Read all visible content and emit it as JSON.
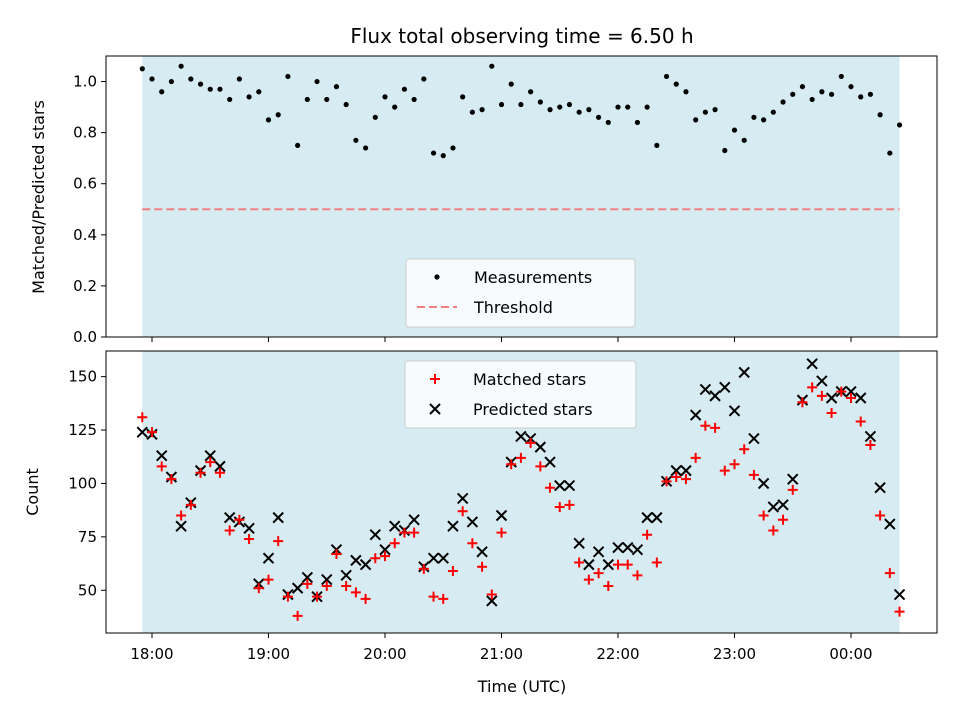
{
  "chart_data": {
    "title": "Flux total observing time = 6.50 h",
    "xlabel": "Time (UTC)",
    "x_ticks": [
      "18:00",
      "19:00",
      "20:00",
      "21:00",
      "22:00",
      "23:00",
      "00:00"
    ],
    "shaded_span": [
      "17:55",
      "00:25"
    ],
    "colors": {
      "span": "#add8e6",
      "measurements": "#000000",
      "threshold": "#f08080",
      "matched": "#ff0000",
      "predicted": "#000000"
    },
    "panels": [
      {
        "type": "scatter",
        "ylabel": "Matched/Predicted stars",
        "ylim": [
          0,
          1.1
        ],
        "yticks": [
          "0.0",
          "0.2",
          "0.4",
          "0.6",
          "0.8",
          "1.0"
        ],
        "legend": [
          "Measurements",
          "Threshold"
        ],
        "legend_position": "lower-center",
        "threshold": 0.5,
        "measurements": {
          "x": [
            "17:55",
            "18:00",
            "18:05",
            "18:10",
            "18:15",
            "18:20",
            "18:25",
            "18:30",
            "18:35",
            "18:40",
            "18:45",
            "18:50",
            "18:55",
            "19:00",
            "19:05",
            "19:10",
            "19:15",
            "19:20",
            "19:25",
            "19:30",
            "19:35",
            "19:40",
            "19:45",
            "19:50",
            "19:55",
            "20:00",
            "20:05",
            "20:10",
            "20:15",
            "20:20",
            "20:25",
            "20:30",
            "20:35",
            "20:40",
            "20:45",
            "20:50",
            "20:55",
            "21:00",
            "21:05",
            "21:10",
            "21:15",
            "21:20",
            "21:25",
            "21:30",
            "21:35",
            "21:40",
            "21:45",
            "21:50",
            "21:55",
            "22:00",
            "22:05",
            "22:10",
            "22:15",
            "22:20",
            "22:25",
            "22:30",
            "22:35",
            "22:40",
            "22:45",
            "22:50",
            "22:55",
            "23:00",
            "23:05",
            "23:10",
            "23:15",
            "23:20",
            "23:25",
            "23:30",
            "23:35",
            "23:40",
            "23:45",
            "23:50",
            "23:55",
            "00:00",
            "00:05",
            "00:10",
            "00:15",
            "00:20",
            "00:25"
          ],
          "y": [
            1.05,
            1.01,
            0.96,
            1.0,
            1.06,
            1.01,
            0.99,
            0.97,
            0.97,
            0.93,
            1.01,
            0.94,
            0.96,
            0.85,
            0.87,
            1.02,
            0.75,
            0.93,
            1.0,
            0.93,
            0.98,
            0.91,
            0.77,
            0.74,
            0.86,
            0.94,
            0.9,
            0.97,
            0.93,
            1.01,
            0.72,
            0.71,
            0.74,
            0.94,
            0.88,
            0.89,
            1.06,
            0.91,
            0.99,
            0.91,
            0.96,
            0.92,
            0.89,
            0.9,
            0.91,
            0.88,
            0.89,
            0.86,
            0.84,
            0.9,
            0.9,
            0.84,
            0.9,
            0.75,
            1.02,
            0.99,
            0.96,
            0.85,
            0.88,
            0.89,
            0.73,
            0.81,
            0.77,
            0.86,
            0.85,
            0.88,
            0.92,
            0.95,
            0.98,
            0.93,
            0.96,
            0.95,
            1.02,
            0.98,
            0.94,
            0.95,
            0.87,
            0.72,
            0.83
          ]
        }
      },
      {
        "type": "scatter",
        "ylabel": "Count",
        "ylim": [
          30,
          162
        ],
        "yticks": [
          "50",
          "75",
          "100",
          "125",
          "150"
        ],
        "legend": [
          "Matched stars",
          "Predicted stars"
        ],
        "legend_position": "upper-center",
        "series": [
          {
            "name": "Matched stars",
            "marker": "+",
            "x": [
              "17:55",
              "18:00",
              "18:05",
              "18:10",
              "18:15",
              "18:20",
              "18:25",
              "18:30",
              "18:35",
              "18:40",
              "18:45",
              "18:50",
              "18:55",
              "19:00",
              "19:05",
              "19:10",
              "19:15",
              "19:20",
              "19:25",
              "19:30",
              "19:35",
              "19:40",
              "19:45",
              "19:50",
              "19:55",
              "20:00",
              "20:05",
              "20:10",
              "20:15",
              "20:20",
              "20:25",
              "20:30",
              "20:35",
              "20:40",
              "20:45",
              "20:50",
              "20:55",
              "21:00",
              "21:05",
              "21:10",
              "21:15",
              "21:20",
              "21:25",
              "21:30",
              "21:35",
              "21:40",
              "21:45",
              "21:50",
              "21:55",
              "22:00",
              "22:05",
              "22:10",
              "22:15",
              "22:20",
              "22:25",
              "22:30",
              "22:35",
              "22:40",
              "22:45",
              "22:50",
              "22:55",
              "23:00",
              "23:05",
              "23:10",
              "23:15",
              "23:20",
              "23:25",
              "23:30",
              "23:35",
              "23:40",
              "23:45",
              "23:50",
              "23:55",
              "00:00",
              "00:05",
              "00:10",
              "00:15",
              "00:20",
              "00:25"
            ],
            "y": [
              131,
              124,
              108,
              102,
              85,
              90,
              105,
              110,
              105,
              78,
              83,
              74,
              51,
              55,
              73,
              47,
              38,
              53,
              47,
              52,
              67,
              52,
              49,
              46,
              65,
              66,
              72,
              77,
              77,
              60,
              47,
              46,
              59,
              87,
              72,
              61,
              48,
              77,
              109,
              112,
              119,
              108,
              98,
              89,
              90,
              63,
              55,
              58,
              52,
              62,
              62,
              57,
              76,
              63,
              101,
              103,
              102,
              112,
              127,
              126,
              106,
              109,
              116,
              104,
              85,
              78,
              83,
              97,
              138,
              145,
              141,
              133,
              143,
              140,
              129,
              118,
              85,
              58,
              40
            ]
          },
          {
            "name": "Predicted stars",
            "marker": "x",
            "x": [
              "17:55",
              "18:00",
              "18:05",
              "18:10",
              "18:15",
              "18:20",
              "18:25",
              "18:30",
              "18:35",
              "18:40",
              "18:45",
              "18:50",
              "18:55",
              "19:00",
              "19:05",
              "19:10",
              "19:15",
              "19:20",
              "19:25",
              "19:30",
              "19:35",
              "19:40",
              "19:45",
              "19:50",
              "19:55",
              "20:00",
              "20:05",
              "20:10",
              "20:15",
              "20:20",
              "20:25",
              "20:30",
              "20:35",
              "20:40",
              "20:45",
              "20:50",
              "20:55",
              "21:00",
              "21:05",
              "21:10",
              "21:15",
              "21:20",
              "21:25",
              "21:30",
              "21:35",
              "21:40",
              "21:45",
              "21:50",
              "21:55",
              "22:00",
              "22:05",
              "22:10",
              "22:15",
              "22:20",
              "22:25",
              "22:30",
              "22:35",
              "22:40",
              "22:45",
              "22:50",
              "22:55",
              "23:00",
              "23:05",
              "23:10",
              "23:15",
              "23:20",
              "23:25",
              "23:30",
              "23:35",
              "23:40",
              "23:45",
              "23:50",
              "23:55",
              "00:00",
              "00:05",
              "00:10",
              "00:15",
              "00:20",
              "00:25"
            ],
            "y": [
              124,
              123,
              113,
              103,
              80,
              91,
              106,
              113,
              108,
              84,
              82,
              79,
              53,
              65,
              84,
              48,
              51,
              56,
              47,
              55,
              69,
              57,
              64,
              62,
              76,
              69,
              80,
              78,
              83,
              61,
              65,
              65,
              80,
              93,
              82,
              68,
              45,
              85,
              110,
              122,
              121,
              117,
              110,
              99,
              99,
              72,
              62,
              68,
              62,
              70,
              70,
              69,
              84,
              84,
              101,
              106,
              106,
              132,
              144,
              141,
              145,
              134,
              152,
              121,
              100,
              89,
              90,
              102,
              139,
              156,
              148,
              140,
              143,
              143,
              140,
              122,
              98,
              81,
              48
            ]
          }
        ]
      }
    ]
  }
}
